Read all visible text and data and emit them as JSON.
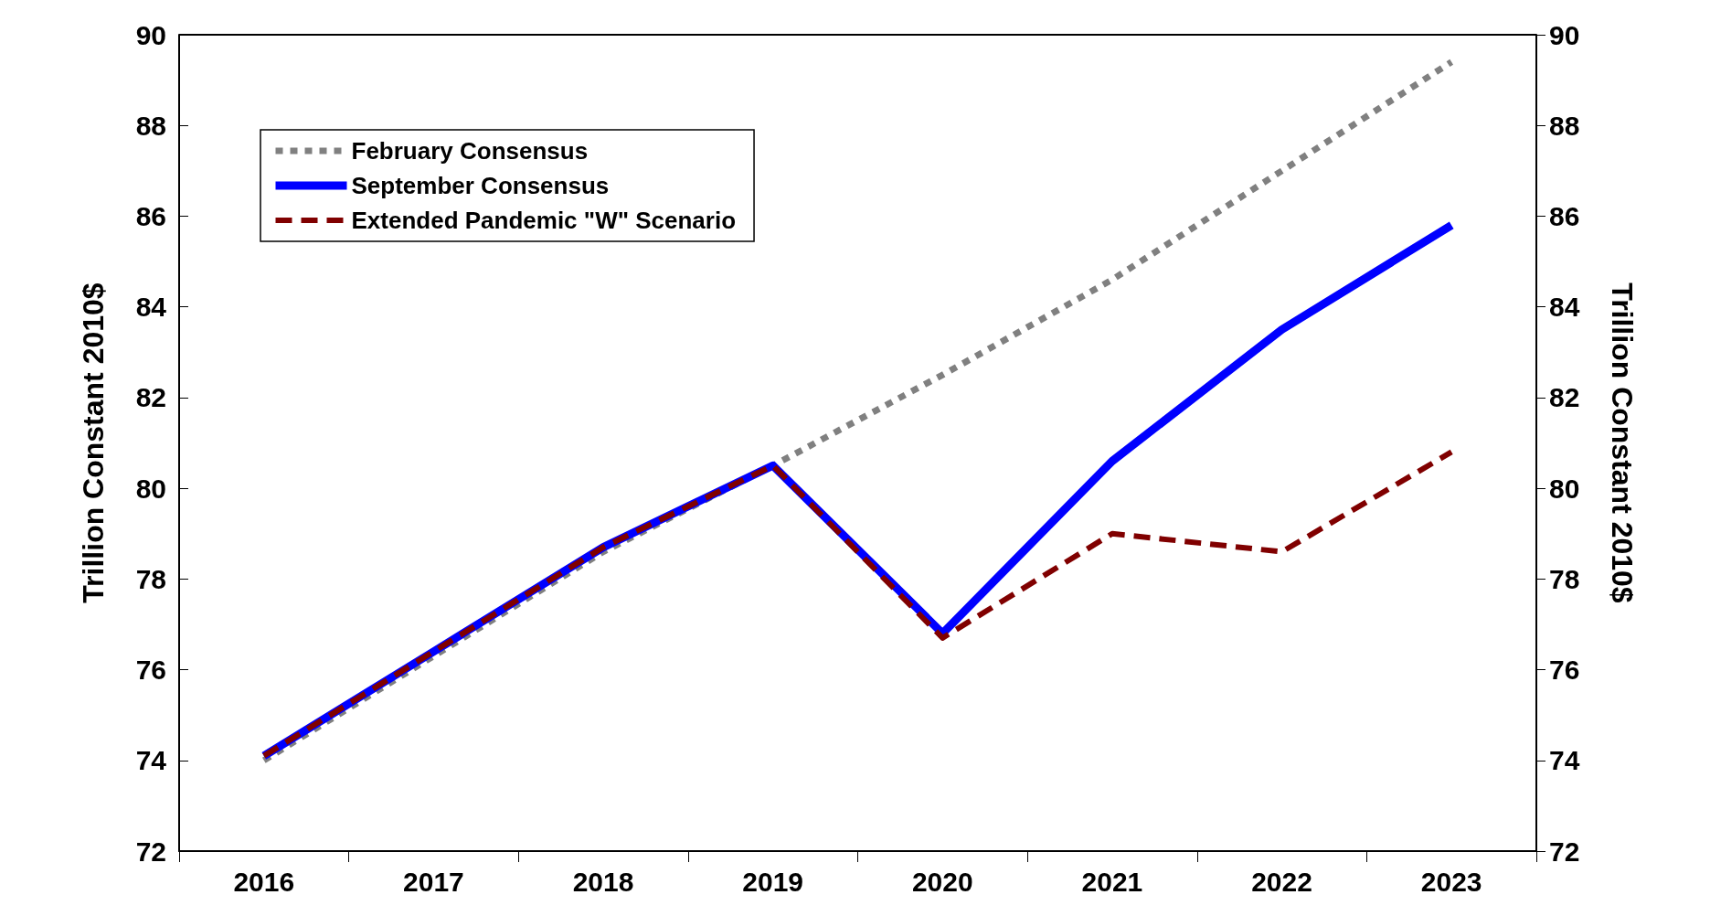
{
  "chart_data": {
    "type": "line",
    "ylabel": "Trillion Constant 2010$",
    "y2label": "Trillion Constant 2010$",
    "categories": [
      "2016",
      "2017",
      "2018",
      "2019",
      "2020",
      "2021",
      "2022",
      "2023"
    ],
    "series": [
      {
        "name": "February Consensus",
        "color": "#808080",
        "line_style": "dotted",
        "values": [
          74.0,
          76.3,
          78.6,
          80.5,
          82.5,
          84.6,
          87.0,
          89.4
        ]
      },
      {
        "name": "September Consensus",
        "color": "#0000ff",
        "line_style": "solid",
        "values": [
          74.1,
          76.4,
          78.7,
          80.5,
          76.8,
          80.6,
          83.5,
          85.8
        ]
      },
      {
        "name": "Extended Pandemic \"W\" Scenario",
        "color": "#800000",
        "line_style": "dashed",
        "values": [
          74.1,
          76.4,
          78.7,
          80.5,
          76.7,
          79.0,
          78.6,
          80.8
        ]
      }
    ],
    "ylim": [
      72,
      90
    ],
    "yticks": [
      72,
      74,
      76,
      78,
      80,
      82,
      84,
      86,
      88,
      90
    ],
    "y2lim": [
      72,
      90
    ],
    "y2ticks": [
      72,
      74,
      76,
      78,
      80,
      82,
      84,
      86,
      88,
      90
    ],
    "grid": false,
    "legend": "top left",
    "marker": "none"
  }
}
